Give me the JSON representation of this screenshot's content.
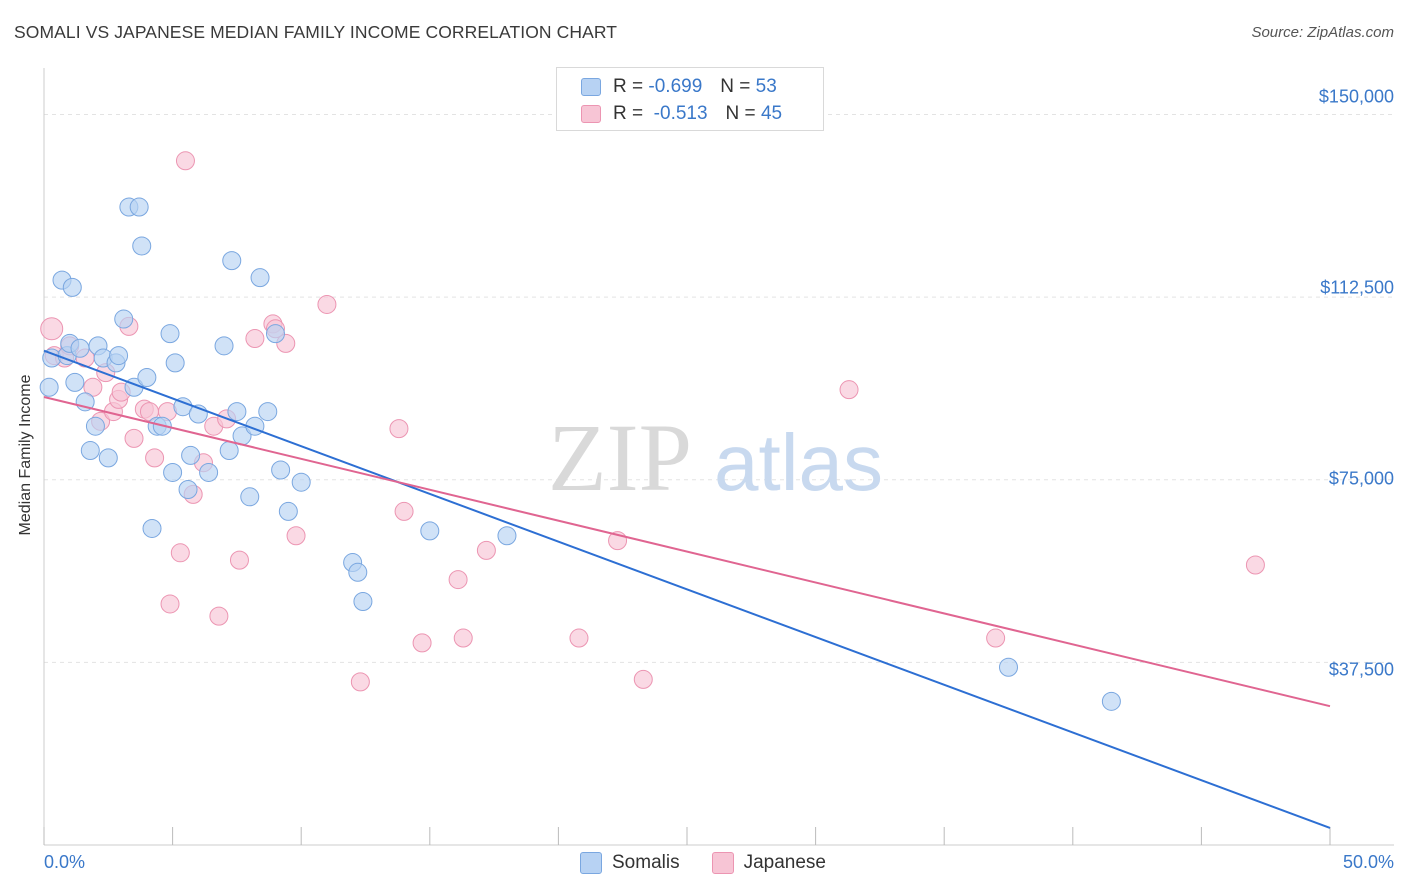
{
  "title": "SOMALI VS JAPANESE MEDIAN FAMILY INCOME CORRELATION CHART",
  "source": "Source: ZipAtlas.com",
  "watermark": {
    "zip": "ZIP",
    "atlas": "atlas"
  },
  "colors": {
    "somali_fill": "#b7d2f3",
    "somali_stroke": "#7aa7e0",
    "somali_line": "#2d6fd3",
    "japanese_fill": "#f7c5d5",
    "japanese_stroke": "#ec95b2",
    "japanese_line": "#e06591",
    "tick_text": "#3a78c9",
    "grid": "#e3e3e3"
  },
  "stats": {
    "somali": {
      "r_label": "R =",
      "r_value": "-0.699",
      "n_label": "N =",
      "n_value": "53"
    },
    "japanese": {
      "r_label": "R =",
      "r_value": "-0.513",
      "n_label": "N =",
      "n_value": "45"
    }
  },
  "chart_data": {
    "type": "scatter",
    "title": "SOMALI VS JAPANESE MEDIAN FAMILY INCOME CORRELATION CHART",
    "xlabel": "",
    "ylabel": "Median Family Income",
    "xlim": [
      0,
      50
    ],
    "ylim": [
      0,
      157500
    ],
    "x_tick_labels": [
      "0.0%",
      "50.0%"
    ],
    "y_ticks": [
      37500,
      75000,
      112500,
      150000
    ],
    "y_tick_labels": [
      "$37,500",
      "$75,000",
      "$112,500",
      "$150,000"
    ],
    "legend": [
      "Somalis",
      "Japanese"
    ],
    "series": [
      {
        "name": "Somalis",
        "trend": {
          "x": [
            0,
            50
          ],
          "y": [
            101500,
            3500
          ]
        },
        "points": [
          [
            0.2,
            94000
          ],
          [
            0.3,
            100000
          ],
          [
            0.7,
            116000
          ],
          [
            0.9,
            100500
          ],
          [
            1.0,
            103000
          ],
          [
            1.1,
            114500
          ],
          [
            1.2,
            95000
          ],
          [
            1.4,
            102000
          ],
          [
            1.6,
            91000
          ],
          [
            1.8,
            81000
          ],
          [
            2.0,
            86000
          ],
          [
            2.1,
            102500
          ],
          [
            2.3,
            100000
          ],
          [
            2.5,
            79500
          ],
          [
            2.8,
            99000
          ],
          [
            2.9,
            100500
          ],
          [
            3.1,
            108000
          ],
          [
            3.3,
            131000
          ],
          [
            3.5,
            94000
          ],
          [
            3.7,
            131000
          ],
          [
            3.8,
            123000
          ],
          [
            4.0,
            96000
          ],
          [
            4.2,
            65000
          ],
          [
            4.4,
            86000
          ],
          [
            4.6,
            86000
          ],
          [
            4.9,
            105000
          ],
          [
            5.1,
            99000
          ],
          [
            5.0,
            76500
          ],
          [
            5.4,
            90000
          ],
          [
            5.6,
            73000
          ],
          [
            5.7,
            80000
          ],
          [
            6.0,
            88500
          ],
          [
            6.4,
            76500
          ],
          [
            7.0,
            102500
          ],
          [
            7.2,
            81000
          ],
          [
            7.3,
            120000
          ],
          [
            7.5,
            89000
          ],
          [
            7.7,
            84000
          ],
          [
            8.0,
            71500
          ],
          [
            8.2,
            86000
          ],
          [
            8.4,
            116500
          ],
          [
            8.7,
            89000
          ],
          [
            9.0,
            105000
          ],
          [
            9.2,
            77000
          ],
          [
            9.5,
            68500
          ],
          [
            10.0,
            74500
          ],
          [
            12.0,
            58000
          ],
          [
            12.2,
            56000
          ],
          [
            12.4,
            50000
          ],
          [
            15.0,
            64500
          ],
          [
            18.0,
            63500
          ],
          [
            37.5,
            36500
          ],
          [
            41.5,
            29500
          ]
        ]
      },
      {
        "name": "Japanese",
        "trend": {
          "x": [
            0,
            50
          ],
          "y": [
            92000,
            28500
          ]
        },
        "points": [
          [
            0.3,
            106000
          ],
          [
            0.4,
            100500
          ],
          [
            0.8,
            100000
          ],
          [
            1.0,
            102500
          ],
          [
            1.6,
            100000
          ],
          [
            1.9,
            94000
          ],
          [
            2.2,
            87000
          ],
          [
            2.4,
            97000
          ],
          [
            2.7,
            89000
          ],
          [
            2.9,
            91500
          ],
          [
            3.0,
            93000
          ],
          [
            3.3,
            106500
          ],
          [
            3.5,
            83500
          ],
          [
            3.9,
            89500
          ],
          [
            4.1,
            89000
          ],
          [
            4.3,
            79500
          ],
          [
            4.8,
            89000
          ],
          [
            5.3,
            60000
          ],
          [
            4.9,
            49500
          ],
          [
            5.5,
            140500
          ],
          [
            5.8,
            72000
          ],
          [
            6.2,
            78500
          ],
          [
            6.6,
            86000
          ],
          [
            6.8,
            47000
          ],
          [
            7.1,
            87500
          ],
          [
            7.6,
            58500
          ],
          [
            8.2,
            104000
          ],
          [
            8.9,
            107000
          ],
          [
            9.0,
            106000
          ],
          [
            9.4,
            103000
          ],
          [
            9.8,
            63500
          ],
          [
            11.0,
            111000
          ],
          [
            12.3,
            33500
          ],
          [
            13.8,
            85500
          ],
          [
            14.0,
            68500
          ],
          [
            14.7,
            41500
          ],
          [
            16.1,
            54500
          ],
          [
            16.3,
            42500
          ],
          [
            17.2,
            60500
          ],
          [
            20.8,
            42500
          ],
          [
            22.3,
            62500
          ],
          [
            23.3,
            34000
          ],
          [
            31.3,
            93500
          ],
          [
            37.0,
            42500
          ],
          [
            47.1,
            57500
          ]
        ]
      }
    ]
  }
}
